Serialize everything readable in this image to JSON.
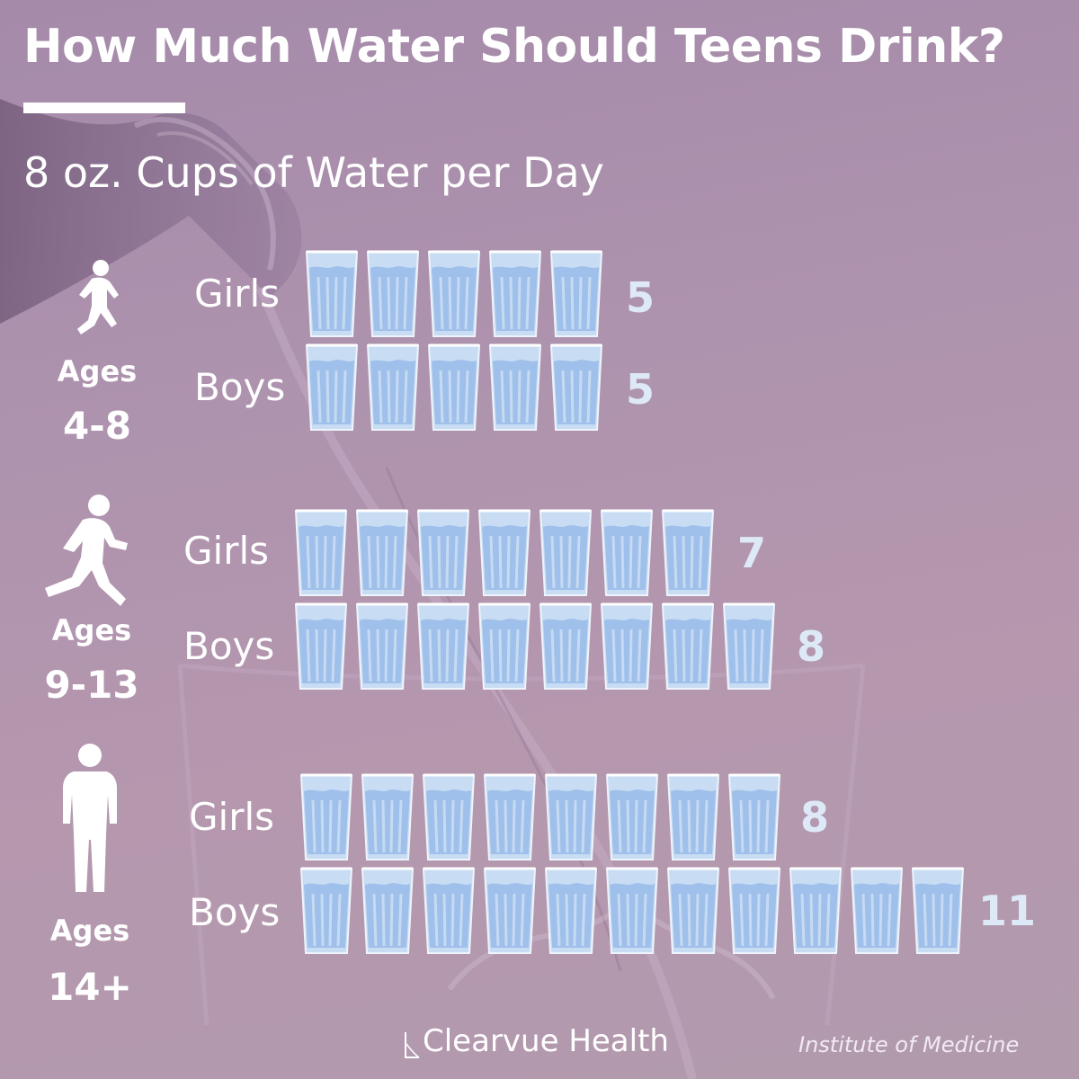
{
  "title": "How Much Water Should Teens Drink?",
  "subtitle": "8 oz. Cups of Water per Day",
  "brand": "Clearvue Health",
  "source": "Institute of Medicine",
  "colors": {
    "background": "#ae93ae",
    "cup_fill": "#c8dcf3",
    "water": "#9fc0ea",
    "value_text": "#dde9f6"
  },
  "age_groups": [
    {
      "label": "Ages",
      "range": "4-8",
      "icon": "running-child-icon",
      "rows": [
        {
          "label": "Girls",
          "value": "5"
        },
        {
          "label": "Boys",
          "value": "5"
        }
      ]
    },
    {
      "label": "Ages",
      "range": "9-13",
      "icon": "running-boy-icon",
      "rows": [
        {
          "label": "Girls",
          "value": "7"
        },
        {
          "label": "Boys",
          "value": "8"
        }
      ]
    },
    {
      "label": "Ages",
      "range": "14+",
      "icon": "standing-teen-icon",
      "rows": [
        {
          "label": "Girls",
          "value": "8"
        },
        {
          "label": "Boys",
          "value": "11"
        }
      ]
    }
  ],
  "chart_data": {
    "type": "bar",
    "title": "How Much Water Should Teens Drink?",
    "subtitle": "8 oz. Cups of Water per Day",
    "categories": [
      "Ages 4-8",
      "Ages 9-13",
      "Ages 14+"
    ],
    "series": [
      {
        "name": "Girls",
        "values": [
          5,
          7,
          8
        ]
      },
      {
        "name": "Boys",
        "values": [
          5,
          8,
          11
        ]
      }
    ],
    "xlabel": "",
    "ylabel": "",
    "grid": false,
    "legend": "none"
  }
}
